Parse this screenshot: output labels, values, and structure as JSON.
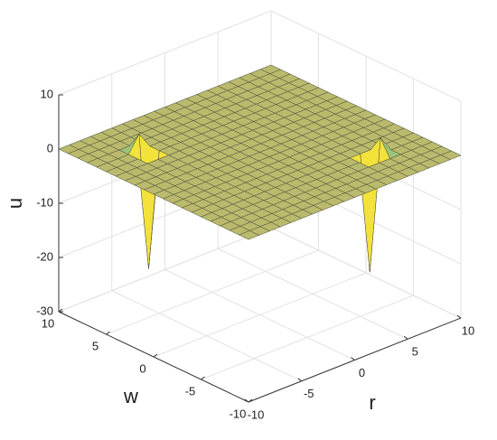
{
  "chart_data": {
    "type": "surface",
    "xlabel": "r",
    "ylabel": "w",
    "zlabel": "u",
    "x": [
      -10,
      -9,
      -8,
      -7,
      -6,
      -5,
      -4,
      -3,
      -2,
      -1,
      0,
      1,
      2,
      3,
      4,
      5,
      6,
      7,
      8,
      9,
      10
    ],
    "y": [
      -10,
      -9,
      -8,
      -7,
      -6,
      -5,
      -4,
      -3,
      -2,
      -1,
      0,
      1,
      2,
      3,
      4,
      5,
      6,
      7,
      8,
      9,
      10
    ],
    "z": [
      [
        0,
        0,
        0,
        0,
        0,
        0,
        0,
        0,
        0,
        0,
        0,
        0,
        0,
        0,
        0,
        0,
        0,
        0,
        0,
        0,
        0
      ],
      [
        0,
        0,
        0,
        0,
        0,
        0,
        0,
        0,
        0,
        0,
        0,
        0,
        0,
        0,
        0,
        0,
        0,
        0,
        0,
        0,
        0
      ],
      [
        0,
        0,
        0,
        0,
        0,
        0,
        0,
        0,
        0,
        0,
        0,
        0,
        0,
        0,
        0,
        0,
        0,
        0,
        0,
        0,
        0
      ],
      [
        0,
        0,
        0,
        0,
        0,
        0,
        0,
        0,
        0,
        0,
        0,
        0,
        0,
        0,
        0,
        0,
        0,
        0,
        0,
        0,
        0
      ],
      [
        0,
        0,
        0,
        0,
        0,
        0,
        0,
        0,
        0,
        0,
        0,
        0,
        0,
        0,
        0,
        -21,
        3,
        0,
        0,
        0,
        0
      ],
      [
        0,
        0,
        0,
        0,
        0,
        0,
        0,
        0,
        0,
        0,
        0,
        0,
        0,
        0,
        0,
        0,
        0,
        0,
        0,
        0,
        0
      ],
      [
        0,
        0,
        0,
        0,
        0,
        0,
        0,
        0,
        0,
        0,
        0,
        0,
        0,
        0,
        0,
        0,
        0,
        0,
        0,
        0,
        0
      ],
      [
        0,
        0,
        0,
        0,
        0,
        0,
        0,
        0,
        0,
        0,
        0,
        0,
        0,
        0,
        0,
        0,
        0,
        0,
        0,
        0,
        0
      ],
      [
        0,
        0,
        0,
        0,
        0,
        0,
        0,
        0,
        0,
        0,
        0,
        0,
        0,
        0,
        0,
        0,
        0,
        0,
        0,
        0,
        0
      ],
      [
        0,
        0,
        0,
        0,
        0,
        0,
        0,
        0,
        0,
        0,
        0,
        0,
        0,
        0,
        0,
        0,
        0,
        0,
        0,
        0,
        0
      ],
      [
        0,
        0,
        0,
        0,
        0,
        0,
        0,
        0,
        0,
        0,
        0,
        0,
        0,
        0,
        0,
        0,
        0,
        0,
        0,
        0,
        0
      ],
      [
        0,
        0,
        0,
        0,
        0,
        0,
        0,
        0,
        0,
        0,
        0,
        0,
        0,
        0,
        0,
        0,
        0,
        0,
        0,
        0,
        0
      ],
      [
        0,
        0,
        0,
        0,
        0,
        0,
        0,
        0,
        0,
        0,
        0,
        0,
        0,
        0,
        0,
        0,
        0,
        0,
        0,
        0,
        0
      ],
      [
        0,
        0,
        0,
        0,
        0,
        0,
        0,
        0,
        0,
        0,
        0,
        0,
        0,
        0,
        0,
        0,
        0,
        0,
        0,
        0,
        0
      ],
      [
        0,
        0,
        0,
        0,
        0,
        0,
        0,
        0,
        0,
        0,
        0,
        0,
        0,
        0,
        0,
        0,
        0,
        0,
        0,
        0,
        0
      ],
      [
        0,
        0,
        0,
        0,
        -21,
        0,
        0,
        0,
        0,
        0,
        0,
        0,
        0,
        0,
        0,
        0,
        0,
        0,
        0,
        0,
        0
      ],
      [
        0,
        0,
        0,
        0,
        3,
        0,
        0,
        0,
        0,
        0,
        0,
        0,
        0,
        0,
        0,
        0,
        0,
        0,
        0,
        0,
        0
      ],
      [
        0,
        0,
        0,
        0,
        0,
        0,
        0,
        0,
        0,
        0,
        0,
        0,
        0,
        0,
        0,
        0,
        0,
        0,
        0,
        0,
        0
      ],
      [
        0,
        0,
        0,
        0,
        0,
        0,
        0,
        0,
        0,
        0,
        0,
        0,
        0,
        0,
        0,
        0,
        0,
        0,
        0,
        0,
        0
      ],
      [
        0,
        0,
        0,
        0,
        0,
        0,
        0,
        0,
        0,
        0,
        0,
        0,
        0,
        0,
        0,
        0,
        0,
        0,
        0,
        0,
        0
      ],
      [
        0,
        0,
        0,
        0,
        0,
        0,
        0,
        0,
        0,
        0,
        0,
        0,
        0,
        0,
        0,
        0,
        0,
        0,
        0,
        0,
        0
      ]
    ],
    "xlim": [
      -10,
      10
    ],
    "ylim": [
      -10,
      10
    ],
    "zlim": [
      -30,
      10
    ],
    "xticks": [
      -10,
      -5,
      0,
      5,
      10
    ],
    "yticks": [
      -10,
      -5,
      0,
      5,
      10
    ],
    "zticks": [
      -30,
      -20,
      -10,
      0,
      10
    ],
    "color": "#b9ba6c",
    "low_color": "#f2e23a",
    "high_color": "#9cc47a",
    "edge_color": "#4a4a3a",
    "grid": true
  }
}
